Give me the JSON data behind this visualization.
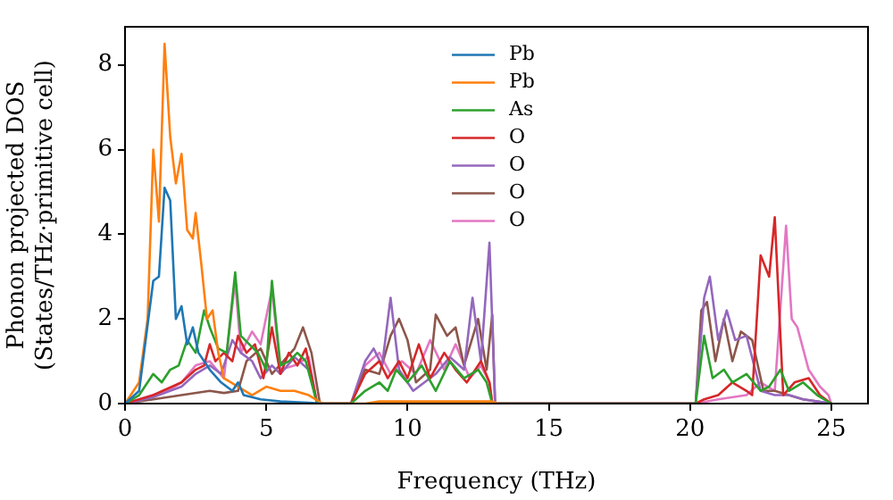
{
  "chart_data": {
    "type": "line",
    "xlabel": "Frequency (THz)",
    "ylabel": "Phonon projected DOS\n(States/THz·primitive cell)",
    "xlim": [
      0,
      26.3
    ],
    "ylim": [
      0,
      8.9
    ],
    "xticks": [
      0,
      5,
      10,
      15,
      20,
      25
    ],
    "yticks": [
      0,
      2,
      4,
      6,
      8
    ],
    "grid": false,
    "legend": "top",
    "marker": "none",
    "line_style": "solid",
    "series": [
      {
        "name": "Pb",
        "color": "#1f77b4",
        "x": [
          0,
          0.5,
          1.0,
          1.2,
          1.4,
          1.6,
          1.8,
          2.0,
          2.2,
          2.4,
          2.6,
          2.8,
          3.0,
          3.4,
          3.8,
          4.0,
          4.2,
          4.8,
          5.5,
          6.5,
          7
        ],
        "values": [
          0,
          0.3,
          2.9,
          3.0,
          5.1,
          4.8,
          2.0,
          2.3,
          1.4,
          1.8,
          1.2,
          1.0,
          0.8,
          0.5,
          0.3,
          0.5,
          0.2,
          0.1,
          0.05,
          0.02,
          0
        ]
      },
      {
        "name": "Pb",
        "color": "#ff7f0e",
        "x": [
          0,
          0.5,
          0.8,
          1.0,
          1.2,
          1.4,
          1.6,
          1.8,
          2.0,
          2.2,
          2.4,
          2.5,
          2.7,
          2.9,
          3.1,
          3.3,
          3.5,
          4.0,
          4.5,
          5.0,
          5.5,
          6.0,
          6.5,
          7,
          8.5,
          9,
          13,
          13.2
        ],
        "values": [
          0,
          0.5,
          2,
          6.0,
          4.3,
          8.5,
          6.3,
          5.2,
          5.9,
          4.1,
          3.9,
          4.5,
          3.3,
          2.0,
          2.2,
          1.2,
          0.6,
          0.4,
          0.2,
          0.4,
          0.3,
          0.3,
          0.2,
          0,
          0,
          0.05,
          0.05,
          0
        ]
      },
      {
        "name": "As",
        "color": "#2ca02c",
        "x": [
          0,
          0.5,
          1.0,
          1.3,
          1.6,
          1.9,
          2.2,
          2.5,
          2.8,
          3.0,
          3.3,
          3.6,
          3.9,
          4.1,
          4.4,
          4.7,
          5.0,
          5.2,
          5.5,
          5.8,
          6.1,
          6.4,
          6.8,
          8,
          8.5,
          9,
          9.3,
          9.6,
          10,
          10.5,
          11,
          11.5,
          12,
          12.5,
          12.8,
          13,
          20.2,
          20.5,
          20.8,
          21.2,
          21.5,
          22,
          22.5,
          22.8,
          23.2,
          23.5,
          24,
          24.5,
          25
        ],
        "values": [
          0,
          0.2,
          0.7,
          0.5,
          0.8,
          0.9,
          1.5,
          1.2,
          2.2,
          1.8,
          1.3,
          1.2,
          3.1,
          1.6,
          1.4,
          1.2,
          0.8,
          2.9,
          0.9,
          1.0,
          1.2,
          1.0,
          0,
          0,
          0.3,
          0.5,
          0.3,
          0.8,
          0.5,
          0.9,
          0.3,
          1.0,
          0.6,
          0.8,
          0.5,
          0,
          0,
          1.6,
          0.6,
          0.8,
          0.5,
          0.7,
          0.3,
          0.4,
          0.8,
          0.3,
          0.5,
          0.2,
          0
        ]
      },
      {
        "name": "O",
        "color": "#d62728",
        "x": [
          0,
          1,
          2,
          2.5,
          2.8,
          3.0,
          3.2,
          3.5,
          3.8,
          4.0,
          4.3,
          4.6,
          4.9,
          5.2,
          5.5,
          5.8,
          6.1,
          6.4,
          6.8,
          8,
          8.5,
          9,
          9.3,
          9.7,
          10,
          10.4,
          10.8,
          11.3,
          11.7,
          12.1,
          12.6,
          12.9,
          13,
          20.2,
          20.5,
          21,
          21.5,
          22,
          22.2,
          22.5,
          22.8,
          23.0,
          23.3,
          23.7,
          24.2,
          24.6,
          25
        ],
        "values": [
          0,
          0.2,
          0.5,
          0.8,
          0.9,
          1.4,
          1.0,
          1.2,
          1.0,
          1.6,
          1.2,
          1.4,
          0.6,
          1.8,
          0.7,
          1.2,
          0.9,
          1.3,
          0,
          0,
          0.7,
          1.0,
          0.6,
          1.0,
          0.6,
          1.4,
          0.6,
          1.2,
          0.8,
          0.5,
          1.0,
          0.5,
          0,
          0,
          0.1,
          0.2,
          0.5,
          0.3,
          0.2,
          3.5,
          3.0,
          4.4,
          0.2,
          0.5,
          0.6,
          0.2,
          0
        ]
      },
      {
        "name": "O",
        "color": "#9467bd",
        "x": [
          0,
          1,
          2,
          2.5,
          3,
          3.4,
          3.8,
          4.1,
          4.5,
          4.8,
          5.2,
          5.5,
          6,
          6.5,
          6.8,
          8,
          8.5,
          8.8,
          9.1,
          9.4,
          9.7,
          10.2,
          10.6,
          11,
          11.5,
          12,
          12.3,
          12.6,
          12.9,
          13.1,
          20.2,
          20.5,
          20.7,
          21,
          21.3,
          21.6,
          22,
          22.5,
          23,
          23.5,
          24,
          24.5,
          25
        ],
        "values": [
          0,
          0.15,
          0.4,
          0.7,
          0.9,
          0.7,
          1.5,
          1.2,
          1.0,
          0.6,
          0.9,
          0.7,
          1.1,
          0.8,
          0,
          0,
          1.0,
          1.3,
          0.9,
          2.5,
          0.8,
          0.3,
          0.5,
          0.7,
          1.1,
          0.8,
          2.5,
          1.0,
          3.8,
          0,
          0,
          2.5,
          3.0,
          1.5,
          2.2,
          1.5,
          1.6,
          0.3,
          0.2,
          0.2,
          0.1,
          0.05,
          0
        ]
      },
      {
        "name": "O",
        "color": "#8c564b",
        "x": [
          0,
          1,
          2,
          3,
          3.5,
          4,
          4.3,
          4.8,
          5.2,
          5.6,
          6.0,
          6.3,
          6.6,
          6.9,
          8,
          8.5,
          9,
          9.4,
          9.7,
          10,
          10.3,
          10.8,
          11,
          11.4,
          11.7,
          12,
          12.5,
          12.8,
          13,
          13.1,
          20.2,
          20.4,
          20.6,
          20.9,
          21.2,
          21.5,
          21.8,
          22.2,
          22.6,
          23,
          23.5,
          24,
          24.5,
          25
        ],
        "values": [
          0,
          0.1,
          0.2,
          0.3,
          0.25,
          0.3,
          1.0,
          1.3,
          0.7,
          1.0,
          1.3,
          1.8,
          1.2,
          0,
          0,
          0.8,
          0.7,
          1.6,
          2.0,
          1.5,
          0.5,
          0.8,
          2.1,
          1.6,
          1.8,
          0.9,
          2.0,
          0.8,
          2.1,
          0,
          0,
          2.2,
          2.4,
          1.0,
          2.0,
          1.0,
          1.7,
          1.5,
          0.3,
          0.3,
          0.2,
          0.1,
          0.05,
          0
        ]
      },
      {
        "name": "O",
        "color": "#e377c2",
        "x": [
          0,
          1,
          1.5,
          2,
          2.5,
          3,
          3.5,
          3.9,
          4.1,
          4.5,
          4.8,
          5.2,
          5.5,
          6,
          6.5,
          6.8,
          8,
          8.5,
          9,
          9.4,
          9.8,
          10.3,
          10.8,
          11.3,
          11.7,
          12.2,
          12.6,
          12.9,
          13,
          20.2,
          21,
          22,
          22.5,
          23,
          23.4,
          23.6,
          23.8,
          24.2,
          24.6,
          24.9,
          25
        ],
        "values": [
          0,
          0.2,
          0.3,
          0.5,
          0.9,
          1.0,
          0.6,
          2.9,
          1.2,
          1.7,
          1.4,
          2.7,
          0.8,
          0.9,
          1.1,
          0,
          0,
          0.9,
          1.2,
          0.7,
          1.0,
          0.7,
          1.5,
          0.8,
          1.4,
          0.6,
          0.9,
          0.5,
          0,
          0,
          0.1,
          0.2,
          0.5,
          0.3,
          4.2,
          2.0,
          1.8,
          0.8,
          0.4,
          0.2,
          0
        ]
      }
    ]
  }
}
